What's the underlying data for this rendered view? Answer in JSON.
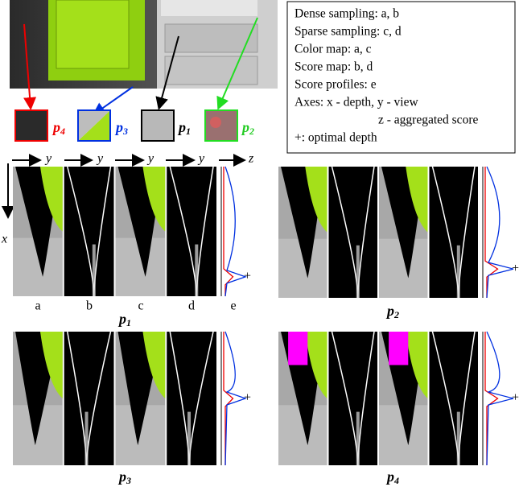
{
  "legend": {
    "lines": [
      "Dense sampling: a, b",
      "Sparse sampling: c, d",
      "Color map: a, c",
      "Score map: b, d",
      "Score profiles: e",
      "Axes: x - depth, y - view",
      "z - aggregated score",
      "+: optimal depth"
    ]
  },
  "patches": [
    {
      "symbol": "p",
      "index": "4"
    },
    {
      "symbol": "p",
      "index": "3"
    },
    {
      "symbol": "p",
      "index": "1"
    },
    {
      "symbol": "p",
      "index": "2"
    }
  ],
  "axes": {
    "x": "x",
    "y": "y",
    "z": "z"
  },
  "columns": [
    "a",
    "b",
    "c",
    "d",
    "e"
  ],
  "panels": [
    {
      "symbol": "p",
      "index": "1"
    },
    {
      "symbol": "p",
      "index": "2"
    },
    {
      "symbol": "p",
      "index": "3"
    },
    {
      "symbol": "p",
      "index": "4"
    }
  ]
}
